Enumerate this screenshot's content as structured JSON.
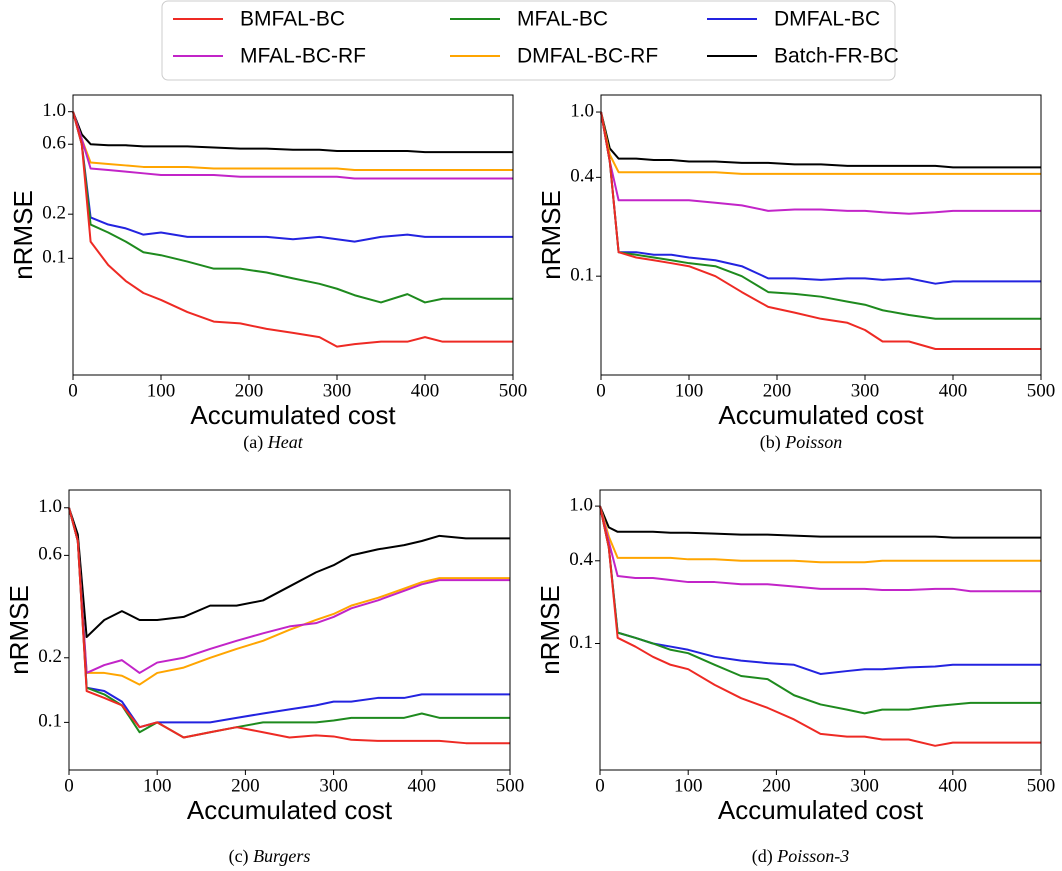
{
  "legend": {
    "entries": [
      {
        "name": "BMFAL-BC",
        "color": "#ee2a24"
      },
      {
        "name": "MFAL-BC",
        "color": "#1e8a1e"
      },
      {
        "name": "DMFAL-BC",
        "color": "#2323e0"
      },
      {
        "name": "MFAL-BC-RF",
        "color": "#c224c8"
      },
      {
        "name": "DMFAL-BC-RF",
        "color": "#ffa500"
      },
      {
        "name": "Batch-FR-BC",
        "color": "#000000"
      }
    ]
  },
  "chart_data": [
    {
      "type": "line",
      "label": "(a)",
      "title": "Heat",
      "xlabel": "Accumulated cost",
      "ylabel": "nRMSE",
      "yscale": "log",
      "xlim": [
        0,
        500
      ],
      "xticks": [
        0,
        100,
        200,
        300,
        400,
        500
      ],
      "ylim": [
        0.016,
        1.3
      ],
      "yticks": [
        0.1,
        0.2,
        0.6,
        {
          "value": 1,
          "label": "1.0"
        }
      ],
      "x": [
        0,
        10,
        20,
        40,
        60,
        80,
        100,
        130,
        160,
        190,
        220,
        250,
        280,
        300,
        320,
        350,
        380,
        400,
        420,
        450,
        500
      ],
      "series": [
        {
          "color": "#ee2a24",
          "values": [
            1.0,
            0.6,
            0.13,
            0.09,
            0.07,
            0.058,
            0.052,
            0.043,
            0.037,
            0.036,
            0.033,
            0.031,
            0.029,
            0.025,
            0.026,
            0.027,
            0.027,
            0.029,
            0.027,
            0.027,
            0.027
          ]
        },
        {
          "color": "#1e8a1e",
          "values": [
            1.0,
            0.6,
            0.17,
            0.15,
            0.13,
            0.11,
            0.105,
            0.095,
            0.085,
            0.085,
            0.08,
            0.073,
            0.067,
            0.062,
            0.056,
            0.05,
            0.057,
            0.05,
            0.053,
            0.053,
            0.053
          ]
        },
        {
          "color": "#2323e0",
          "values": [
            1.0,
            0.6,
            0.19,
            0.17,
            0.16,
            0.145,
            0.15,
            0.14,
            0.14,
            0.14,
            0.14,
            0.135,
            0.14,
            0.135,
            0.13,
            0.14,
            0.145,
            0.14,
            0.14,
            0.14,
            0.14
          ]
        },
        {
          "color": "#c224c8",
          "values": [
            1.0,
            0.65,
            0.41,
            0.4,
            0.39,
            0.38,
            0.37,
            0.37,
            0.37,
            0.36,
            0.36,
            0.36,
            0.36,
            0.36,
            0.35,
            0.35,
            0.35,
            0.35,
            0.35,
            0.35,
            0.35
          ]
        },
        {
          "color": "#ffa500",
          "values": [
            1.0,
            0.65,
            0.45,
            0.44,
            0.43,
            0.42,
            0.42,
            0.42,
            0.41,
            0.41,
            0.41,
            0.41,
            0.41,
            0.41,
            0.4,
            0.4,
            0.4,
            0.4,
            0.4,
            0.4,
            0.4
          ]
        },
        {
          "color": "#000000",
          "values": [
            1.0,
            0.7,
            0.6,
            0.59,
            0.59,
            0.58,
            0.58,
            0.58,
            0.57,
            0.56,
            0.56,
            0.55,
            0.55,
            0.54,
            0.54,
            0.54,
            0.54,
            0.53,
            0.53,
            0.53,
            0.53
          ]
        }
      ]
    },
    {
      "type": "line",
      "label": "(b)",
      "title": "Poisson",
      "xlabel": "Accumulated cost",
      "ylabel": "nRMSE",
      "yscale": "log",
      "xlim": [
        0,
        500
      ],
      "xticks": [
        0,
        100,
        200,
        300,
        400,
        500
      ],
      "ylim": [
        0.025,
        1.27
      ],
      "yticks": [
        0.1,
        0.4,
        {
          "value": 1,
          "label": "1.0"
        }
      ],
      "x": [
        0,
        10,
        20,
        40,
        60,
        80,
        100,
        130,
        160,
        190,
        220,
        250,
        280,
        300,
        320,
        350,
        380,
        400,
        420,
        450,
        500
      ],
      "series": [
        {
          "color": "#ee2a24",
          "values": [
            1.0,
            0.5,
            0.14,
            0.13,
            0.125,
            0.12,
            0.115,
            0.1,
            0.08,
            0.065,
            0.06,
            0.055,
            0.052,
            0.047,
            0.04,
            0.04,
            0.036,
            0.036,
            0.036,
            0.036,
            0.036
          ]
        },
        {
          "color": "#1e8a1e",
          "values": [
            1.0,
            0.5,
            0.14,
            0.135,
            0.13,
            0.125,
            0.12,
            0.115,
            0.1,
            0.08,
            0.078,
            0.075,
            0.07,
            0.067,
            0.062,
            0.058,
            0.055,
            0.055,
            0.055,
            0.055,
            0.055
          ]
        },
        {
          "color": "#2323e0",
          "values": [
            1.0,
            0.5,
            0.14,
            0.14,
            0.135,
            0.135,
            0.13,
            0.125,
            0.115,
            0.097,
            0.097,
            0.095,
            0.097,
            0.097,
            0.095,
            0.097,
            0.09,
            0.093,
            0.093,
            0.093,
            0.093
          ]
        },
        {
          "color": "#c224c8",
          "values": [
            1.0,
            0.5,
            0.29,
            0.29,
            0.29,
            0.29,
            0.29,
            0.28,
            0.27,
            0.25,
            0.255,
            0.255,
            0.25,
            0.25,
            0.245,
            0.24,
            0.245,
            0.25,
            0.25,
            0.25,
            0.25
          ]
        },
        {
          "color": "#ffa500",
          "values": [
            1.0,
            0.55,
            0.43,
            0.43,
            0.43,
            0.43,
            0.43,
            0.43,
            0.42,
            0.42,
            0.42,
            0.42,
            0.42,
            0.42,
            0.42,
            0.42,
            0.42,
            0.42,
            0.42,
            0.42,
            0.42
          ]
        },
        {
          "color": "#000000",
          "values": [
            1.0,
            0.6,
            0.52,
            0.52,
            0.51,
            0.51,
            0.5,
            0.5,
            0.49,
            0.49,
            0.48,
            0.48,
            0.47,
            0.47,
            0.47,
            0.47,
            0.47,
            0.46,
            0.46,
            0.46,
            0.46
          ]
        }
      ]
    },
    {
      "type": "line",
      "label": "(c)",
      "title": "Burgers",
      "xlabel": "Accumulated cost",
      "ylabel": "nRMSE",
      "yscale": "log",
      "xlim": [
        0,
        500
      ],
      "xticks": [
        0,
        100,
        200,
        300,
        400,
        500
      ],
      "ylim": [
        0.06,
        1.21
      ],
      "yticks": [
        0.1,
        0.2,
        0.6,
        {
          "value": 1,
          "label": "1.0"
        }
      ],
      "x": [
        0,
        10,
        20,
        40,
        60,
        80,
        100,
        130,
        160,
        190,
        220,
        250,
        280,
        300,
        320,
        350,
        380,
        400,
        420,
        450,
        500
      ],
      "series": [
        {
          "color": "#ee2a24",
          "values": [
            1.0,
            0.7,
            0.14,
            0.13,
            0.12,
            0.095,
            0.1,
            0.085,
            0.09,
            0.095,
            0.09,
            0.085,
            0.087,
            0.086,
            0.083,
            0.082,
            0.082,
            0.082,
            0.082,
            0.08,
            0.08
          ]
        },
        {
          "color": "#1e8a1e",
          "values": [
            1.0,
            0.7,
            0.145,
            0.135,
            0.12,
            0.09,
            0.1,
            0.085,
            0.09,
            0.095,
            0.1,
            0.1,
            0.1,
            0.102,
            0.105,
            0.105,
            0.105,
            0.11,
            0.105,
            0.105,
            0.105
          ]
        },
        {
          "color": "#2323e0",
          "values": [
            1.0,
            0.7,
            0.145,
            0.14,
            0.125,
            0.095,
            0.1,
            0.1,
            0.1,
            0.105,
            0.11,
            0.115,
            0.12,
            0.125,
            0.125,
            0.13,
            0.13,
            0.135,
            0.135,
            0.135,
            0.135
          ]
        },
        {
          "color": "#c224c8",
          "values": [
            1.0,
            0.7,
            0.17,
            0.185,
            0.195,
            0.17,
            0.19,
            0.2,
            0.22,
            0.24,
            0.26,
            0.28,
            0.29,
            0.31,
            0.34,
            0.37,
            0.41,
            0.44,
            0.46,
            0.46,
            0.46
          ]
        },
        {
          "color": "#ffa500",
          "values": [
            1.0,
            0.7,
            0.17,
            0.17,
            0.165,
            0.15,
            0.17,
            0.18,
            0.2,
            0.22,
            0.24,
            0.27,
            0.3,
            0.32,
            0.35,
            0.38,
            0.42,
            0.45,
            0.47,
            0.47,
            0.47
          ]
        },
        {
          "color": "#000000",
          "values": [
            1.0,
            0.75,
            0.25,
            0.3,
            0.33,
            0.3,
            0.3,
            0.31,
            0.35,
            0.35,
            0.37,
            0.43,
            0.5,
            0.54,
            0.6,
            0.64,
            0.67,
            0.7,
            0.74,
            0.72,
            0.72
          ]
        }
      ]
    },
    {
      "type": "line",
      "label": "(d)",
      "title": "Poisson-3",
      "xlabel": "Accumulated cost",
      "ylabel": "nRMSE",
      "yscale": "log",
      "xlim": [
        0,
        500
      ],
      "xticks": [
        0,
        100,
        200,
        300,
        400,
        500
      ],
      "ylim": [
        0.012,
        1.31
      ],
      "yticks": [
        0.1,
        0.4,
        {
          "value": 1,
          "label": "1.0"
        }
      ],
      "x": [
        0,
        10,
        20,
        40,
        60,
        80,
        100,
        130,
        160,
        190,
        220,
        250,
        280,
        300,
        320,
        350,
        380,
        400,
        420,
        450,
        500
      ],
      "series": [
        {
          "color": "#ee2a24",
          "values": [
            1.0,
            0.5,
            0.11,
            0.095,
            0.08,
            0.07,
            0.065,
            0.05,
            0.04,
            0.034,
            0.028,
            0.022,
            0.021,
            0.021,
            0.02,
            0.02,
            0.018,
            0.019,
            0.019,
            0.019,
            0.019
          ]
        },
        {
          "color": "#1e8a1e",
          "values": [
            1.0,
            0.5,
            0.12,
            0.11,
            0.1,
            0.09,
            0.085,
            0.07,
            0.058,
            0.055,
            0.042,
            0.036,
            0.033,
            0.031,
            0.033,
            0.033,
            0.035,
            0.036,
            0.037,
            0.037,
            0.037
          ]
        },
        {
          "color": "#2323e0",
          "values": [
            1.0,
            0.5,
            0.12,
            0.11,
            0.1,
            0.095,
            0.09,
            0.08,
            0.075,
            0.072,
            0.07,
            0.06,
            0.063,
            0.065,
            0.065,
            0.067,
            0.068,
            0.07,
            0.07,
            0.07,
            0.07
          ]
        },
        {
          "color": "#c224c8",
          "values": [
            1.0,
            0.55,
            0.31,
            0.3,
            0.3,
            0.29,
            0.28,
            0.28,
            0.27,
            0.27,
            0.26,
            0.25,
            0.25,
            0.25,
            0.245,
            0.245,
            0.25,
            0.25,
            0.24,
            0.24,
            0.24
          ]
        },
        {
          "color": "#ffa500",
          "values": [
            1.0,
            0.6,
            0.42,
            0.42,
            0.42,
            0.42,
            0.41,
            0.41,
            0.4,
            0.4,
            0.4,
            0.39,
            0.39,
            0.39,
            0.4,
            0.4,
            0.4,
            0.4,
            0.4,
            0.4,
            0.4
          ]
        },
        {
          "color": "#000000",
          "values": [
            1.0,
            0.7,
            0.65,
            0.65,
            0.65,
            0.64,
            0.64,
            0.63,
            0.62,
            0.62,
            0.61,
            0.6,
            0.6,
            0.6,
            0.6,
            0.6,
            0.6,
            0.59,
            0.59,
            0.59,
            0.59
          ]
        }
      ]
    }
  ]
}
